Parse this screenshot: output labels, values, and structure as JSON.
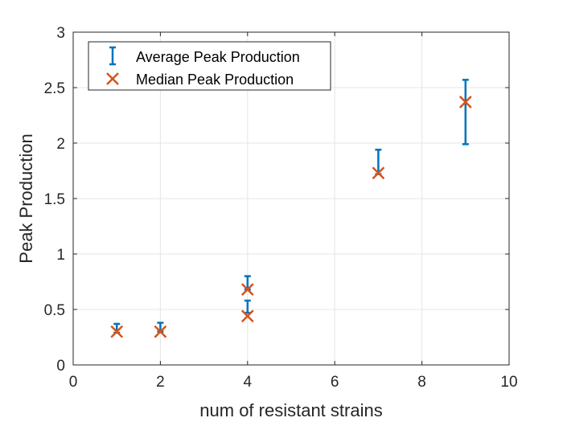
{
  "chart_data": {
    "type": "scatter",
    "xlabel": "num of resistant strains",
    "ylabel": "Peak Production",
    "xlim": [
      0,
      10
    ],
    "ylim": [
      0,
      3
    ],
    "xticks": [
      "0",
      "2",
      "4",
      "6",
      "8",
      "10"
    ],
    "yticks": [
      "0",
      "0.5",
      "1",
      "1.5",
      "2",
      "2.5",
      "3"
    ],
    "grid": true,
    "legend_position": "top-left",
    "series": [
      {
        "name": "Average Peak Production",
        "kind": "errorbar",
        "color": "#0072BD",
        "points": [
          {
            "x": 1,
            "y": 0.33,
            "low": 0.29,
            "high": 0.37
          },
          {
            "x": 2,
            "y": 0.34,
            "low": 0.3,
            "high": 0.38
          },
          {
            "x": 4,
            "y": 0.74,
            "low": 0.68,
            "high": 0.8
          },
          {
            "x": 4,
            "y": 0.53,
            "low": 0.47,
            "high": 0.58
          },
          {
            "x": 7,
            "y": 1.83,
            "low": 1.72,
            "high": 1.94
          },
          {
            "x": 9,
            "y": 2.28,
            "low": 1.99,
            "high": 2.57
          }
        ]
      },
      {
        "name": "Median Peak Production",
        "kind": "marker-x",
        "color": "#D95319",
        "points": [
          {
            "x": 1,
            "y": 0.3
          },
          {
            "x": 2,
            "y": 0.3
          },
          {
            "x": 4,
            "y": 0.68
          },
          {
            "x": 4,
            "y": 0.44
          },
          {
            "x": 7,
            "y": 1.73
          },
          {
            "x": 9,
            "y": 2.37
          }
        ]
      }
    ]
  }
}
